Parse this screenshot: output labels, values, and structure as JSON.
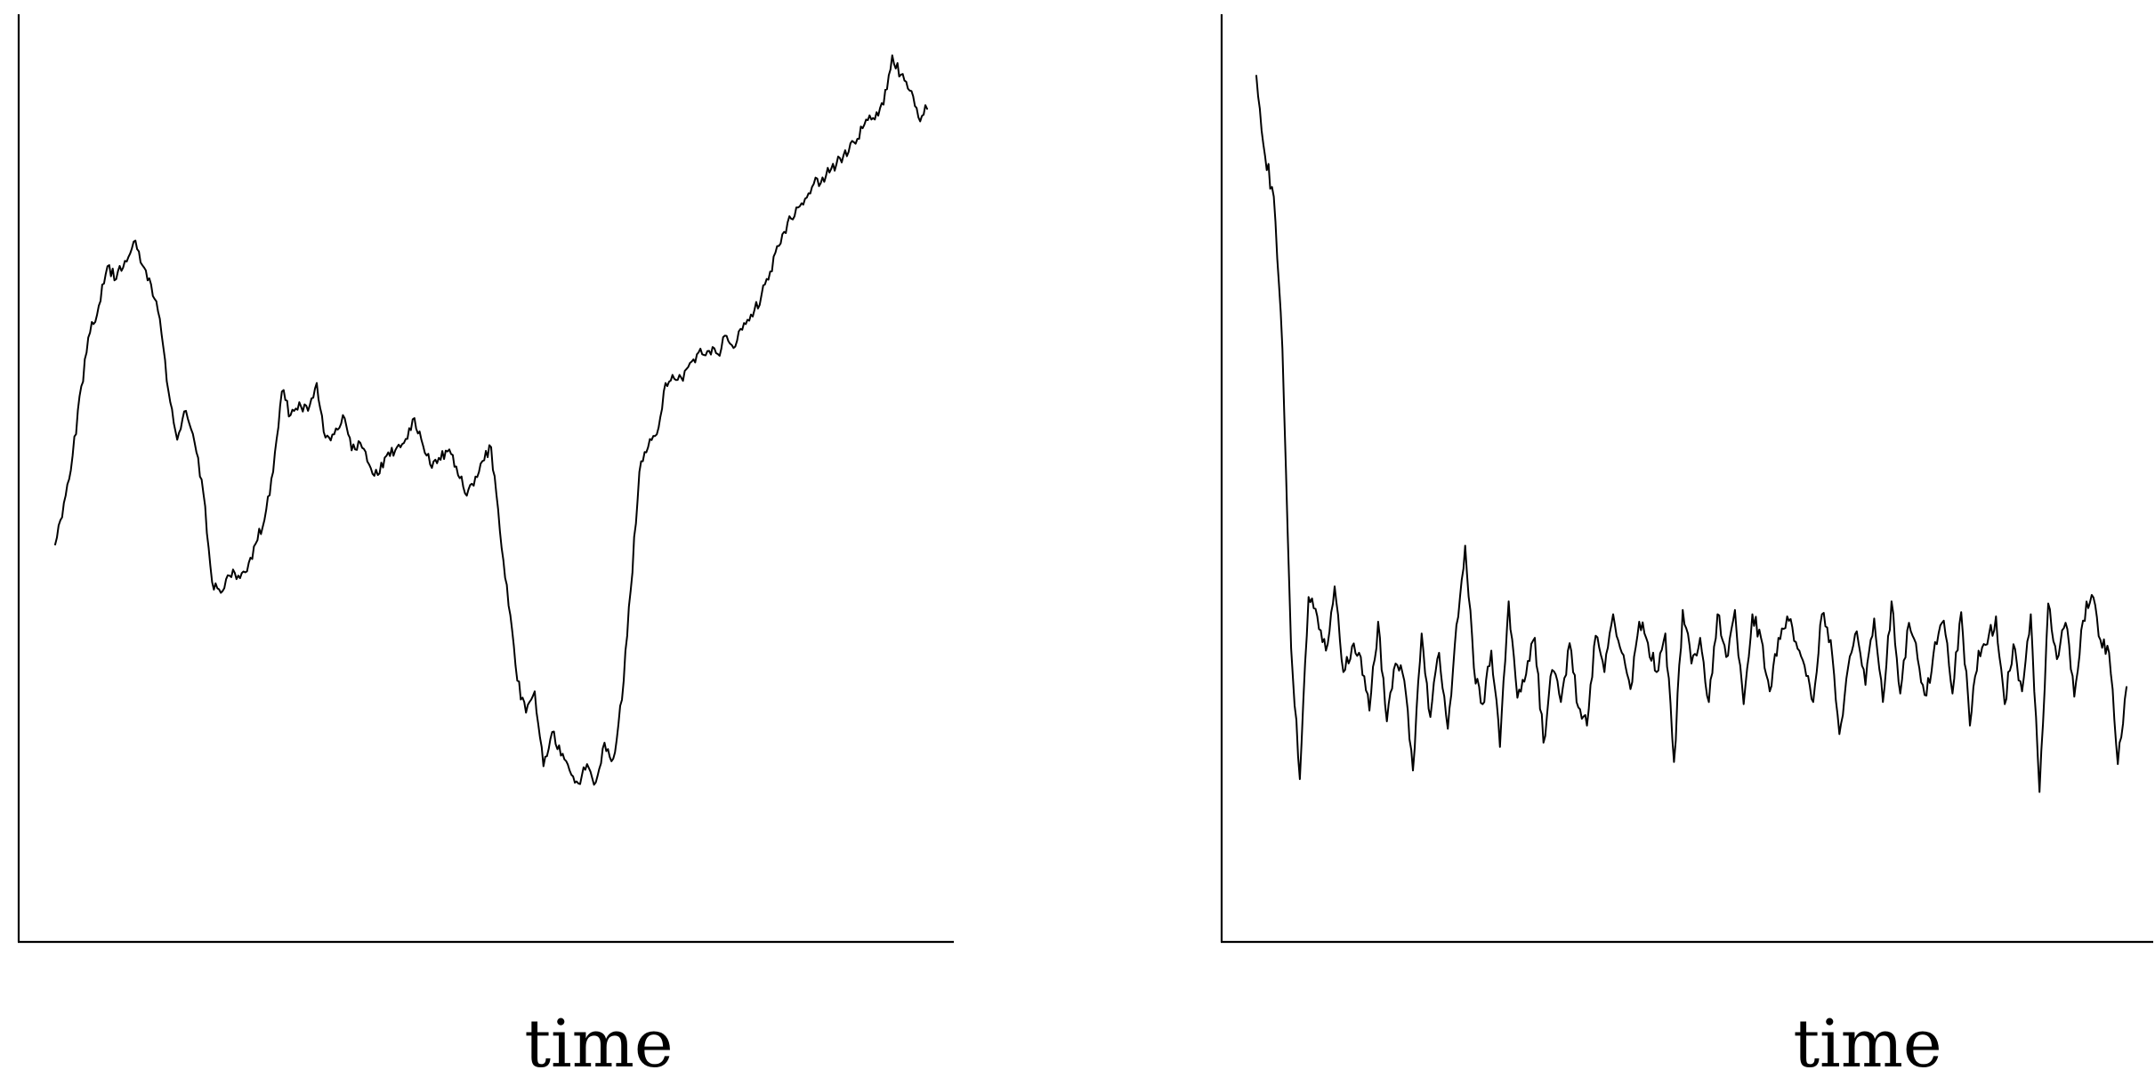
{
  "chart_data": [
    {
      "type": "line",
      "title": "",
      "xlabel": "time",
      "ylabel": "",
      "xlim": [
        0,
        1000
      ],
      "ylim": [
        -40,
        760
      ],
      "grid": false,
      "legend": "none",
      "series": [
        {
          "color": "#000000",
          "x": [
            0,
            10,
            20,
            30,
            40,
            50,
            60,
            70,
            80,
            90,
            100,
            110,
            120,
            130,
            140,
            150,
            160,
            170,
            180,
            190,
            200,
            210,
            220,
            230,
            240,
            250,
            260,
            270,
            280,
            290,
            300,
            310,
            320,
            330,
            340,
            350,
            360,
            370,
            380,
            390,
            400,
            410,
            420,
            430,
            440,
            450,
            460,
            470,
            480,
            490,
            500,
            510,
            520,
            530,
            540,
            550,
            560,
            570,
            580,
            590,
            600,
            610,
            620,
            630,
            640,
            650,
            660,
            670,
            680,
            690,
            700,
            710,
            720,
            730,
            740,
            750,
            760,
            770,
            780,
            790,
            800,
            810,
            820,
            830,
            840,
            850,
            860,
            870,
            880,
            890,
            900,
            910,
            920,
            930,
            940,
            950,
            960,
            970,
            980,
            990,
            1000
          ],
          "y": [
            297,
            336,
            380,
            445,
            495,
            520,
            557,
            545,
            562,
            580,
            558,
            540,
            508,
            440,
            395,
            422,
            392,
            345,
            262,
            252,
            268,
            268,
            272,
            298,
            320,
            365,
            440,
            418,
            430,
            422,
            448,
            397,
            400,
            418,
            385,
            392,
            372,
            362,
            380,
            385,
            392,
            414,
            395,
            372,
            378,
            384,
            370,
            345,
            352,
            375,
            388,
            310,
            240,
            170,
            140,
            160,
            90,
            122,
            100,
            86,
            74,
            92,
            75,
            112,
            97,
            152,
            254,
            365,
            388,
            400,
            448,
            452,
            450,
            468,
            480,
            478,
            475,
            492,
            482,
            504,
            510,
            530,
            552,
            576,
            598,
            612,
            620,
            634,
            640,
            648,
            658,
            664,
            676,
            694,
            694,
            708,
            754,
            736,
            721,
            696,
            704
          ]
        }
      ]
    },
    {
      "type": "line",
      "title": "",
      "xlabel": "time",
      "ylabel": "",
      "xlim": [
        0,
        1000
      ],
      "ylim": [
        -40,
        760
      ],
      "grid": false,
      "legend": "none",
      "series": [
        {
          "color": "#000000",
          "x": [
            0,
            10,
            20,
            30,
            40,
            50,
            60,
            70,
            80,
            90,
            100,
            110,
            120,
            130,
            140,
            150,
            160,
            170,
            180,
            190,
            200,
            210,
            220,
            230,
            240,
            250,
            260,
            270,
            280,
            290,
            300,
            310,
            320,
            330,
            340,
            350,
            360,
            370,
            380,
            390,
            400,
            410,
            420,
            430,
            440,
            450,
            460,
            470,
            480,
            490,
            500,
            510,
            520,
            530,
            540,
            550,
            560,
            570,
            580,
            590,
            600,
            610,
            620,
            630,
            640,
            650,
            660,
            670,
            680,
            690,
            700,
            710,
            720,
            730,
            740,
            750,
            760,
            770,
            780,
            790,
            800,
            810,
            820,
            830,
            840,
            850,
            860,
            870,
            880,
            890,
            900,
            910,
            920,
            930,
            940,
            950,
            960,
            970,
            980,
            990,
            1000
          ],
          "y": [
            735,
            660,
            622,
            480,
            200,
            78,
            248,
            230,
            198,
            258,
            178,
            202,
            192,
            142,
            225,
            132,
            186,
            170,
            86,
            214,
            136,
            196,
            125,
            222,
            296,
            182,
            148,
            198,
            108,
            244,
            154,
            176,
            210,
            112,
            180,
            150,
            205,
            145,
            128,
            212,
            178,
            232,
            196,
            162,
            225,
            205,
            178,
            214,
            94,
            236,
            186,
            210,
            150,
            232,
            192,
            236,
            148,
            232,
            210,
            160,
            210,
            230,
            206,
            184,
            150,
            232,
            208,
            120,
            182,
            216,
            166,
            228,
            150,
            244,
            158,
            224,
            190,
            156,
            206,
            226,
            158,
            234,
            128,
            198,
            204,
            230,
            148,
            204,
            160,
            232,
            66,
            242,
            190,
            224,
            155,
            226,
            250,
            208,
            196,
            92,
            164
          ]
        }
      ]
    }
  ]
}
